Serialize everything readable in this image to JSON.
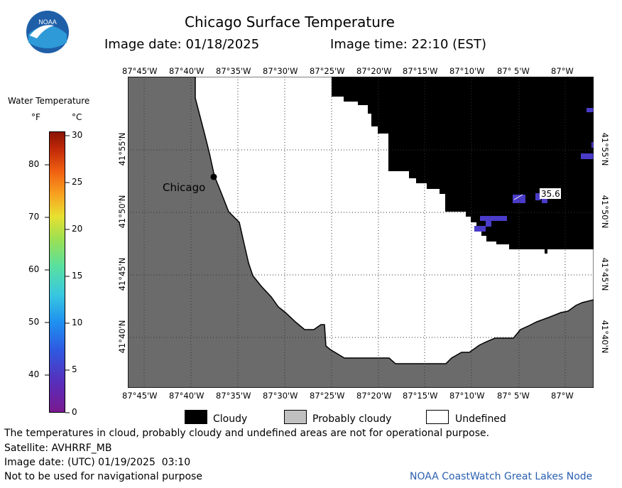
{
  "header": {
    "title": "Chicago Surface Temperature",
    "image_date": "Image date: 01/18/2025",
    "image_time": "Image time: 22:10 (EST)"
  },
  "logo": {
    "text": "NOAA",
    "colors": {
      "outer": "#1f5fa8",
      "inner": "#2e9ad8",
      "bird": "#ffffff"
    }
  },
  "colorbar": {
    "title": "Water Temperature",
    "unit_f": "°F",
    "unit_c": "°C",
    "f_ticks": [
      "80",
      "70",
      "60",
      "50",
      "40"
    ],
    "c_ticks": [
      "30",
      "25",
      "20",
      "15",
      "10",
      "5",
      "0"
    ]
  },
  "map": {
    "top_lon_labels": [
      "87°45'W",
      "87°40'W",
      "87°35'W",
      "87°30'W",
      "87°25'W",
      "87°20'W",
      "87°15'W",
      "87°10'W",
      "87° 5'W",
      "87°W"
    ],
    "bottom_lon_labels": [
      "87°45'W",
      "87°40'W",
      "87°35'W",
      "87°30'W",
      "87°25'W",
      "87°20'W",
      "87°15'W",
      "87°10'W",
      "87° 5'W",
      "87°W"
    ],
    "left_lat_labels": [
      "41°55'N",
      "41°50'N",
      "41°45'N",
      "41°40'N"
    ],
    "right_lat_labels": [
      "41°55'N",
      "41°50'N",
      "41°45'N",
      "41°40'N"
    ],
    "city_label": "Chicago",
    "temp_label": "35.6",
    "colors": {
      "land": "#6b6b6b",
      "cloud": "#000000",
      "undefined": "#ffffff",
      "water_cold": "#4a3cc8"
    }
  },
  "legend": {
    "cloudy": "Cloudy",
    "probably_cloudy": "Probably cloudy",
    "undefined": "Undefined",
    "colors": {
      "cloudy": "#000000",
      "probably_cloudy": "#c0c0c0",
      "undefined": "#ffffff"
    }
  },
  "footer": {
    "disclaimer": "The temperatures in cloud, probably cloudy and undefined areas are not for operational purpose.",
    "satellite": "Satellite: AVHRRF_MB",
    "utc_date": "Image date: (UTC) 01/19/2025  03:10",
    "nav_warning": "Not to be used for navigational purpose",
    "credit": "NOAA CoastWatch Great Lakes Node"
  }
}
